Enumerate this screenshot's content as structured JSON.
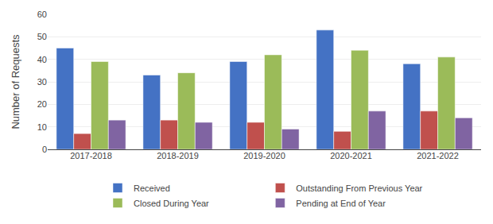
{
  "chart_data": {
    "type": "bar",
    "ylabel": "Number of Requests",
    "categories": [
      "2017-2018",
      "2018-2019",
      "2019-2020",
      "2020-2021",
      "2021-2022"
    ],
    "series": [
      {
        "name": "Received",
        "color": "#4472C4",
        "values": [
          45,
          33,
          39,
          53,
          38
        ]
      },
      {
        "name": "Outstanding From Previous Year",
        "color": "#C0504D",
        "values": [
          7,
          13,
          12,
          8,
          17
        ]
      },
      {
        "name": "Closed During Year",
        "color": "#9BBB59",
        "values": [
          39,
          34,
          42,
          44,
          41
        ]
      },
      {
        "name": "Pending at End of Year",
        "color": "#8064A2",
        "values": [
          13,
          12,
          9,
          17,
          14
        ]
      }
    ],
    "ylim": [
      0,
      60
    ],
    "yticks": [
      0,
      10,
      20,
      30,
      40,
      50,
      60
    ],
    "grid": true,
    "legend": "bottom"
  }
}
